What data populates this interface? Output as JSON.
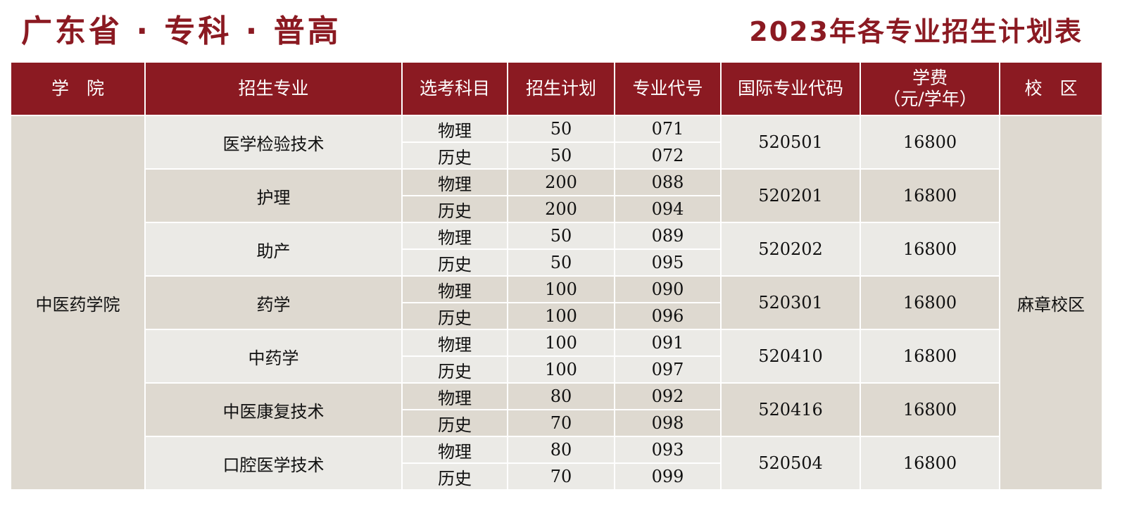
{
  "title_left": "广东省 · 专科 · 普高",
  "title_right": "2023年各专业招生计划表",
  "headers": [
    "学　院",
    "招生专业",
    "选考科目",
    "招生计划",
    "专业代号",
    "国际专业代码",
    "学费\n（元/学年）",
    "校　区"
  ],
  "college": "中医药学院",
  "campus": "麻章校区",
  "majors": [
    {
      "name": "医学检验技术",
      "code": "520501",
      "fee": "16800",
      "rows": [
        {
          "subject": "物理",
          "plan": "50",
          "no": "071"
        },
        {
          "subject": "历史",
          "plan": "50",
          "no": "072"
        }
      ]
    },
    {
      "name": "护理",
      "code": "520201",
      "fee": "16800",
      "rows": [
        {
          "subject": "物理",
          "plan": "200",
          "no": "088"
        },
        {
          "subject": "历史",
          "plan": "200",
          "no": "094"
        }
      ]
    },
    {
      "name": "助产",
      "code": "520202",
      "fee": "16800",
      "rows": [
        {
          "subject": "物理",
          "plan": "50",
          "no": "089"
        },
        {
          "subject": "历史",
          "plan": "50",
          "no": "095"
        }
      ]
    },
    {
      "name": "药学",
      "code": "520301",
      "fee": "16800",
      "rows": [
        {
          "subject": "物理",
          "plan": "100",
          "no": "090"
        },
        {
          "subject": "历史",
          "plan": "100",
          "no": "096"
        }
      ]
    },
    {
      "name": "中药学",
      "code": "520410",
      "fee": "16800",
      "rows": [
        {
          "subject": "物理",
          "plan": "100",
          "no": "091"
        },
        {
          "subject": "历史",
          "plan": "100",
          "no": "097"
        }
      ]
    },
    {
      "name": "中医康复技术",
      "code": "520416",
      "fee": "16800",
      "rows": [
        {
          "subject": "物理",
          "plan": "80",
          "no": "092"
        },
        {
          "subject": "历史",
          "plan": "70",
          "no": "098"
        }
      ]
    },
    {
      "name": "口腔医学技术",
      "code": "520504",
      "fee": "16800",
      "rows": [
        {
          "subject": "物理",
          "plan": "80",
          "no": "093"
        },
        {
          "subject": "历史",
          "plan": "70",
          "no": "099"
        }
      ]
    }
  ]
}
